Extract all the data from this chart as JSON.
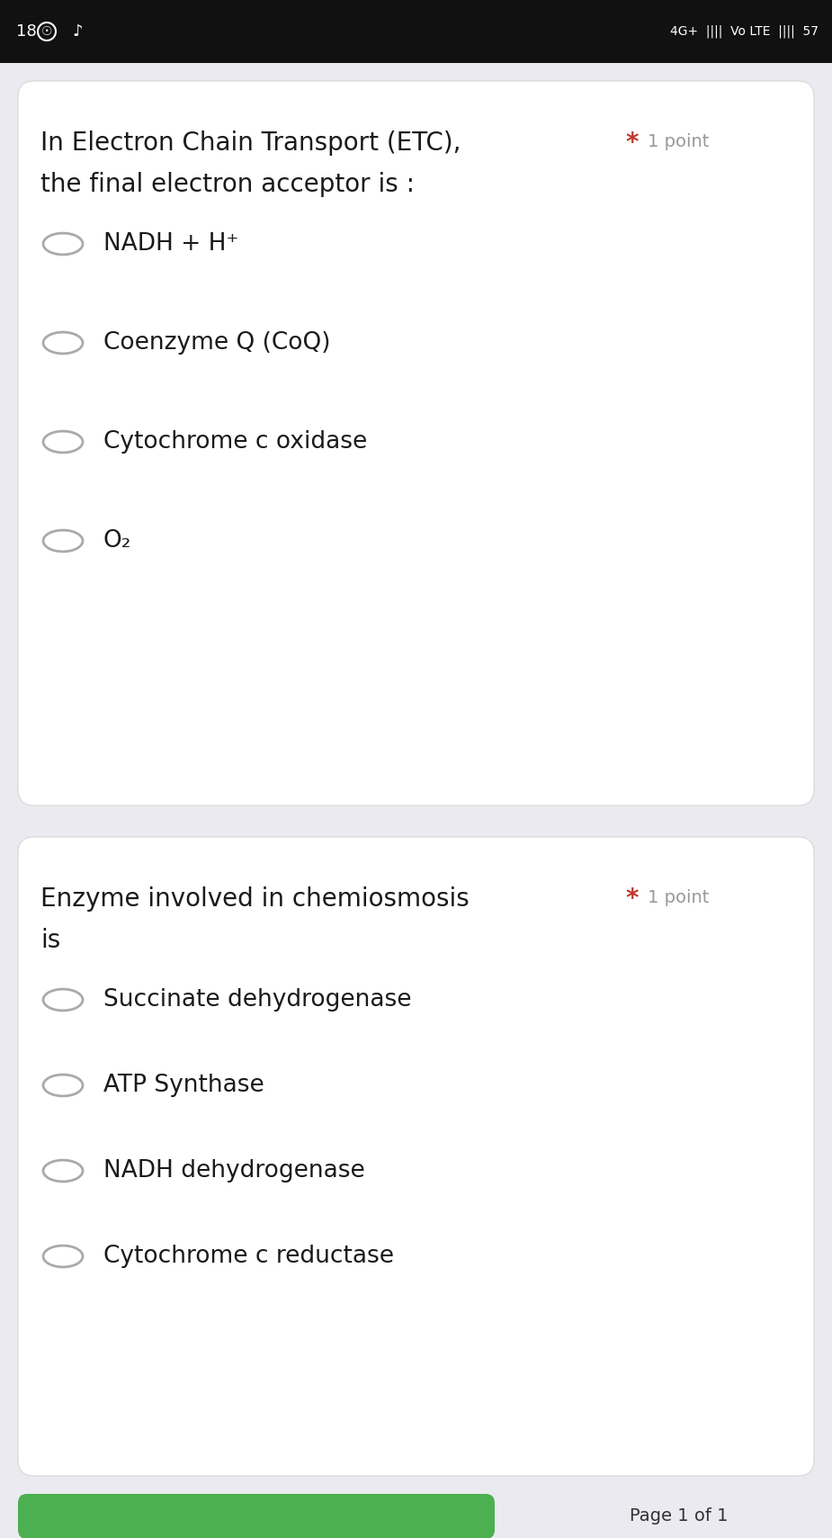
{
  "bg_color": "#eaeaf0",
  "card_color": "#ffffff",
  "status_bar_bg": "#111111",
  "status_bar_text": "#ffffff",
  "question1_title_line1": "In Electron Chain Transport (ETC),",
  "question1_title_line2": "the final electron acceptor is :",
  "question1_star": "*",
  "question1_points": "1 point",
  "question1_options": [
    "NADH + H⁺",
    "Coenzyme Q (CoQ)",
    "Cytochrome c oxidase",
    "O₂"
  ],
  "question2_title_line1": "Enzyme involved in chemiosmosis",
  "question2_title_line1_star": "*",
  "question2_title_line1_points": "1 point",
  "question2_title_line2": "is",
  "question2_options": [
    "Succinate dehydrogenase",
    "ATP Synthase",
    "NADH dehydrogenase",
    "Cytochrome c reductase"
  ],
  "star_color": "#c0392b",
  "points_color": "#999999",
  "question_text_color": "#1a1a1a",
  "option_text_color": "#1a1a1a",
  "circle_edge_color": "#aaaaaa",
  "circle_face_color": "#ffffff",
  "title_fontsize": 20,
  "option_fontsize": 19,
  "points_fontsize": 14,
  "page_text": "Page 1 of 1",
  "green_button_color": "#4CAF50"
}
